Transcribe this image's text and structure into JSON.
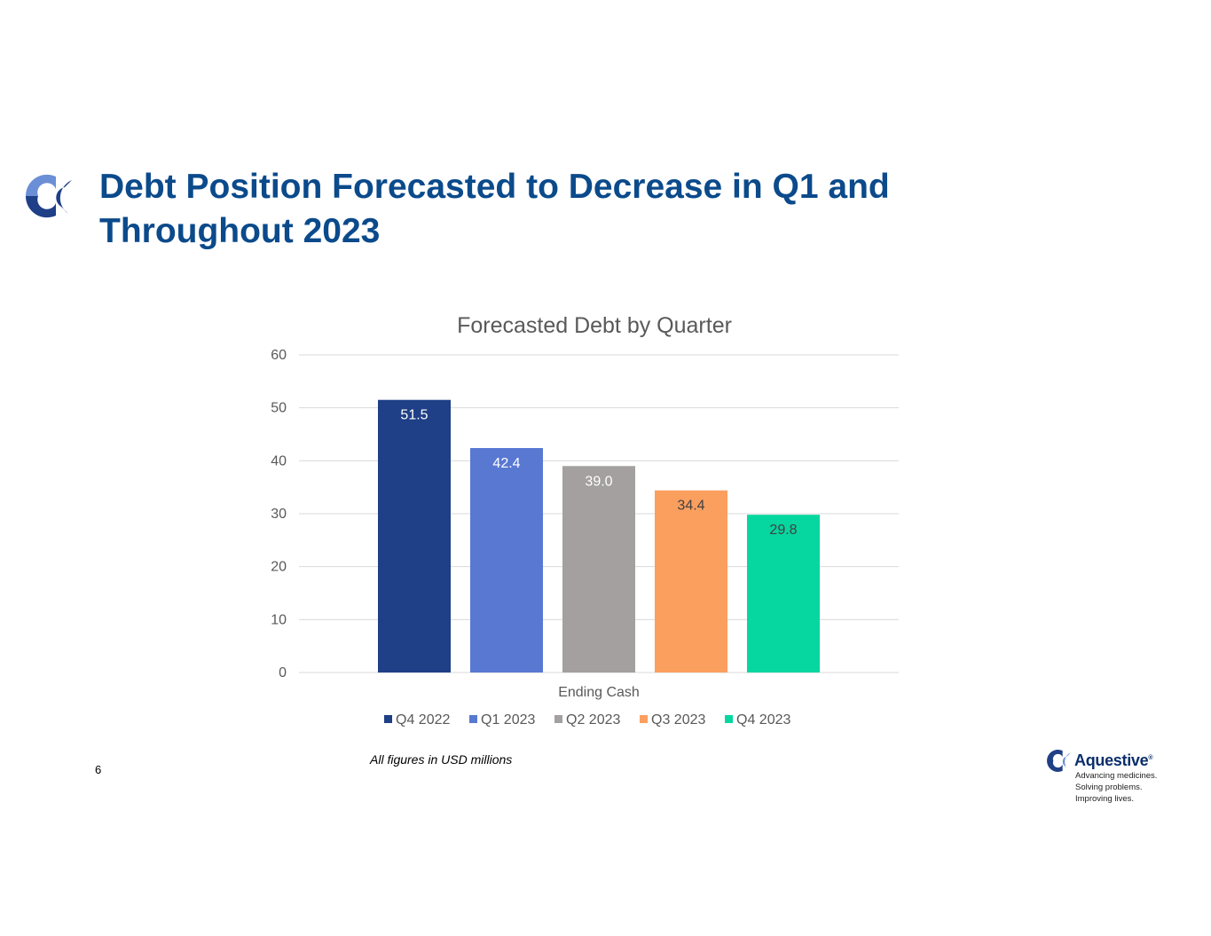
{
  "slide": {
    "title_line1": "Debt Position Forecasted to Decrease in Q1 and",
    "title_line2": "Throughout 2023",
    "page_number": "6",
    "footnote": "All figures in USD millions"
  },
  "brand": {
    "name": "Aquestive",
    "mark": "®",
    "tagline_1": "Advancing medicines.",
    "tagline_2": "Solving problems.",
    "tagline_3": "Improving lives."
  },
  "colors": {
    "title": "#0b4a8b",
    "logo_dark": "#1f3f86",
    "logo_light": "#6b8fd6"
  },
  "chart_data": {
    "type": "bar",
    "title": "Forecasted Debt by Quarter",
    "xlabel": "Ending Cash",
    "ylabel": "",
    "category": "Ending Cash",
    "ylim": [
      0,
      60
    ],
    "yticks": [
      0,
      10,
      20,
      30,
      40,
      50,
      60
    ],
    "grid": true,
    "legend_position": "bottom",
    "series": [
      {
        "name": "Q4 2022",
        "value": 51.5,
        "label": "51.5",
        "color": "#1f3f86",
        "label_color": "#ffffff"
      },
      {
        "name": "Q1 2023",
        "value": 42.4,
        "label": "42.4",
        "color": "#5878d2",
        "label_color": "#ffffff"
      },
      {
        "name": "Q2 2023",
        "value": 39.0,
        "label": "39.0",
        "color": "#a3a09f",
        "label_color": "#ffffff"
      },
      {
        "name": "Q3 2023",
        "value": 34.4,
        "label": "34.4",
        "color": "#fb9f5f",
        "label_color": "#404040"
      },
      {
        "name": "Q4 2023",
        "value": 29.8,
        "label": "29.8",
        "color": "#06d69f",
        "label_color": "#404040"
      }
    ]
  }
}
